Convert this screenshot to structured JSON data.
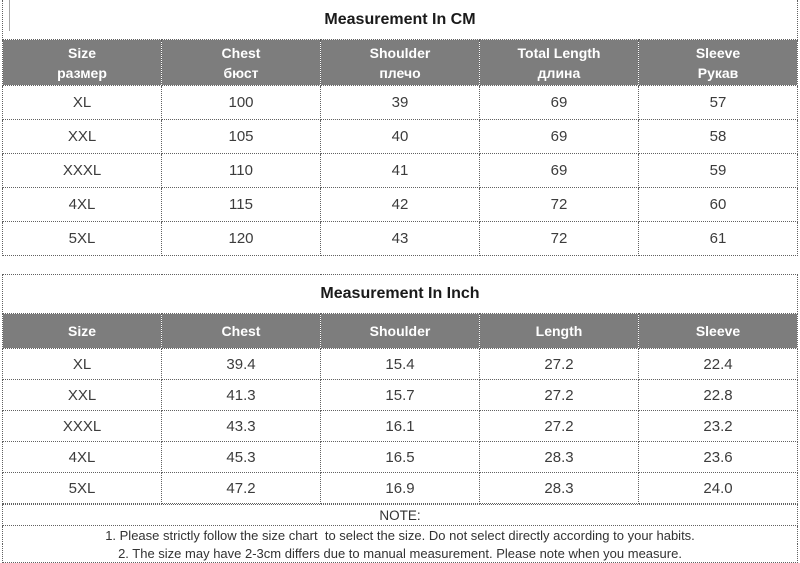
{
  "cm_table": {
    "title": "Measurement In CM",
    "columns": [
      {
        "en": "Size",
        "ru": "размер"
      },
      {
        "en": "Chest",
        "ru": "бюст"
      },
      {
        "en": "Shoulder",
        "ru": "плечо"
      },
      {
        "en": "Total Length",
        "ru": "длина"
      },
      {
        "en": "Sleeve",
        "ru": "Рукав"
      }
    ],
    "rows": [
      [
        "XL",
        "100",
        "39",
        "69",
        "57"
      ],
      [
        "XXL",
        "105",
        "40",
        "69",
        "58"
      ],
      [
        "XXXL",
        "110",
        "41",
        "69",
        "59"
      ],
      [
        "4XL",
        "115",
        "42",
        "72",
        "60"
      ],
      [
        "5XL",
        "120",
        "43",
        "72",
        "61"
      ]
    ]
  },
  "inch_table": {
    "title": "Measurement In Inch",
    "columns": [
      {
        "en": "Size"
      },
      {
        "en": "Chest"
      },
      {
        "en": "Shoulder"
      },
      {
        "en": "Length"
      },
      {
        "en": "Sleeve"
      }
    ],
    "rows": [
      [
        "XL",
        "39.4",
        "15.4",
        "27.2",
        "22.4"
      ],
      [
        "XXL",
        "41.3",
        "15.7",
        "27.2",
        "22.8"
      ],
      [
        "XXXL",
        "43.3",
        "16.1",
        "27.2",
        "23.2"
      ],
      [
        "4XL",
        "45.3",
        "16.5",
        "28.3",
        "23.6"
      ],
      [
        "5XL",
        "47.2",
        "16.9",
        "28.3",
        "24.0"
      ]
    ]
  },
  "note": {
    "title": "NOTE:",
    "lines": [
      "1. Please strictly follow the size chart  to select the size. Do not select directly according to your habits.",
      "2. The size may have 2-3cm differs due to manual measurement. Please note when you measure."
    ]
  },
  "colors": {
    "header_bg": "#7d7d7d",
    "header_text": "#ffffff",
    "body_text": "#3c3c3c",
    "border": "#616161"
  }
}
